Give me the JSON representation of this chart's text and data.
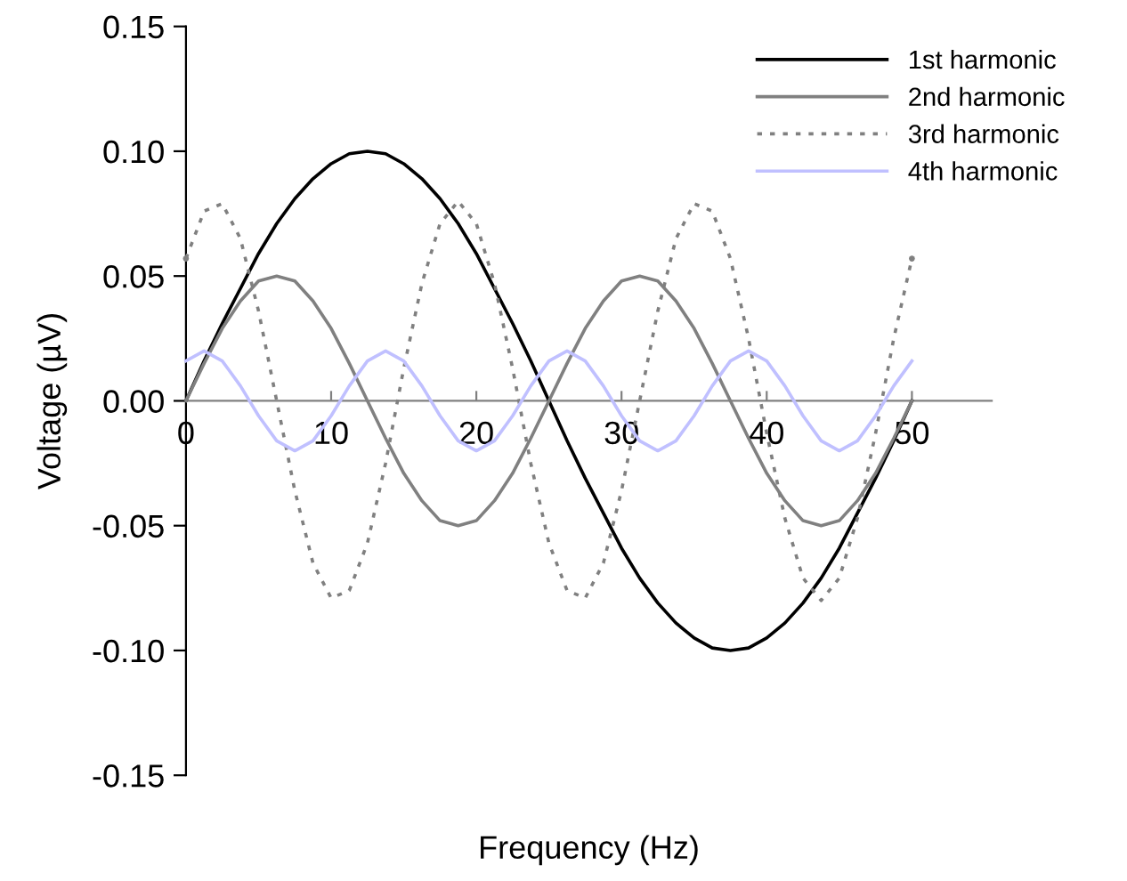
{
  "chart_data": {
    "type": "line",
    "xlabel": "Frequency (Hz)",
    "ylabel": "Voltage (µV)",
    "x": [
      0,
      1.25,
      2.5,
      3.75,
      5,
      6.25,
      7.5,
      8.75,
      10,
      11.25,
      12.5,
      13.75,
      15,
      16.25,
      17.5,
      18.75,
      20,
      21.25,
      22.5,
      23.75,
      25,
      26.25,
      27.5,
      28.75,
      30,
      31.25,
      32.5,
      33.75,
      35,
      36.25,
      37.5,
      38.75,
      40,
      41.25,
      42.5,
      43.75,
      45,
      46.25,
      47.5,
      48.75,
      50
    ],
    "xlim": [
      0,
      55.5
    ],
    "xticks": [
      0,
      10,
      20,
      30,
      40,
      50
    ],
    "ylim": [
      -0.15,
      0.15
    ],
    "yticks": [
      {
        "value": -0.15,
        "label": "-0.15"
      },
      {
        "value": -0.1,
        "label": "-0.10"
      },
      {
        "value": -0.05,
        "label": "-0.05"
      },
      {
        "value": 0,
        "label": "0.00"
      },
      {
        "value": 0.05,
        "label": "0.05"
      },
      {
        "value": 0.1,
        "label": "0.10"
      },
      {
        "value": 0.15,
        "label": "0.15"
      }
    ],
    "grid": false,
    "legend": "top right",
    "marker": "none",
    "series": [
      {
        "name": "1st harmonic",
        "color": "#000000",
        "line_style": "solid",
        "values": [
          0,
          0.016,
          0.031,
          0.045,
          0.059,
          0.071,
          0.081,
          0.089,
          0.095,
          0.099,
          0.1,
          0.099,
          0.095,
          0.089,
          0.081,
          0.071,
          0.059,
          0.045,
          0.031,
          0.016,
          0,
          -0.016,
          -0.031,
          -0.045,
          -0.059,
          -0.071,
          -0.081,
          -0.089,
          -0.095,
          -0.099,
          -0.1,
          -0.099,
          -0.095,
          -0.089,
          -0.081,
          -0.071,
          -0.059,
          -0.045,
          -0.031,
          -0.016,
          0
        ]
      },
      {
        "name": "2nd harmonic",
        "color": "#808080",
        "line_style": "solid",
        "values": [
          0,
          0.015,
          0.029,
          0.04,
          0.048,
          0.05,
          0.048,
          0.04,
          0.029,
          0.015,
          0,
          -0.015,
          -0.029,
          -0.04,
          -0.048,
          -0.05,
          -0.048,
          -0.04,
          -0.029,
          -0.015,
          0,
          0.015,
          0.029,
          0.04,
          0.048,
          0.05,
          0.048,
          0.04,
          0.029,
          0.015,
          0,
          -0.015,
          -0.029,
          -0.04,
          -0.048,
          -0.05,
          -0.048,
          -0.04,
          -0.029,
          -0.015,
          0
        ]
      },
      {
        "name": "3rd harmonic",
        "color": "#808080",
        "line_style": "dotted",
        "values": [
          0.057,
          0.076,
          0.079,
          0.065,
          0.036,
          0,
          -0.036,
          -0.065,
          -0.079,
          -0.076,
          -0.057,
          -0.025,
          0.013,
          0.047,
          0.071,
          0.08,
          0.071,
          0.047,
          0.013,
          -0.025,
          -0.057,
          -0.076,
          -0.079,
          -0.065,
          -0.036,
          0,
          0.036,
          0.065,
          0.079,
          0.076,
          0.057,
          0.025,
          -0.013,
          -0.047,
          -0.071,
          -0.08,
          -0.071,
          -0.047,
          -0.013,
          0.025,
          0.057
        ]
      },
      {
        "name": "4th harmonic",
        "color": "#c0c0ff",
        "line_style": "solid",
        "values": [
          0.016,
          0.02,
          0.016,
          0.006,
          -0.006,
          -0.016,
          -0.02,
          -0.016,
          -0.006,
          0.006,
          0.016,
          0.02,
          0.016,
          0.006,
          -0.006,
          -0.016,
          -0.02,
          -0.016,
          -0.006,
          0.006,
          0.016,
          0.02,
          0.016,
          0.006,
          -0.006,
          -0.016,
          -0.02,
          -0.016,
          -0.006,
          0.006,
          0.016,
          0.02,
          0.016,
          0.006,
          -0.006,
          -0.016,
          -0.02,
          -0.016,
          -0.006,
          0.006,
          0.016
        ]
      }
    ]
  }
}
